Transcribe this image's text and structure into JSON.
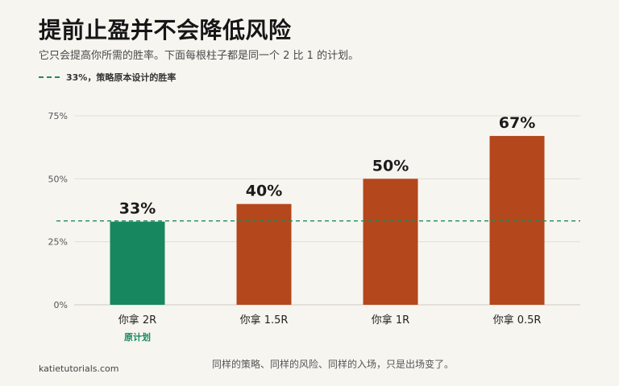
{
  "header": {
    "title": "提前止盈并不会降低风险",
    "subtitle": "它只会提高你所需的胜率。下面每根柱子都是同一个 2 比 1 的计划。"
  },
  "legend": {
    "label": "33%，策略原本设计的胜率"
  },
  "chart_data": {
    "type": "bar",
    "categories": [
      "你拿 2R",
      "你拿 1.5R",
      "你拿 1R",
      "你拿 0.5R"
    ],
    "values": [
      33,
      40,
      50,
      67
    ],
    "value_labels": [
      "33%",
      "40%",
      "50%",
      "67%"
    ],
    "sub_labels": [
      "原计划",
      "",
      "",
      ""
    ],
    "ylim": [
      0,
      75
    ],
    "yticks": [
      0,
      25,
      50,
      75
    ],
    "ytick_labels": [
      "0%",
      "25%",
      "50%",
      "75%"
    ],
    "reference_line": {
      "value": 33.3,
      "style": "dashed"
    },
    "colors": {
      "highlight": "#17875f",
      "bar": "#b4471b",
      "reference": "#1e8a62",
      "grid": "#e2dfd8",
      "axis": "#cfcbc3"
    },
    "highlight_index": 0,
    "grid": true
  },
  "footer": {
    "credit": "katietutorials.com",
    "note": "同样的策略、同样的风险、同样的入场，只是出场变了。"
  }
}
